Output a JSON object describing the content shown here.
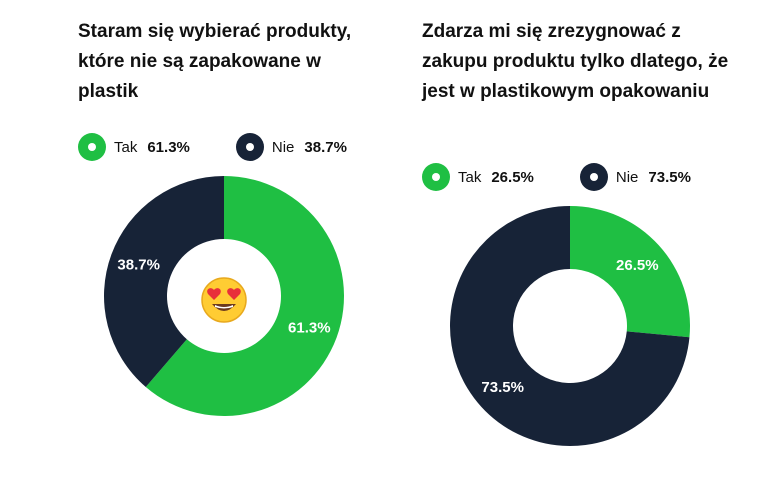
{
  "colors": {
    "tak": "#1fbf43",
    "nie": "#172337"
  },
  "chart_data": [
    {
      "type": "pie",
      "title": "Staram się wybierać produkty, które nie są zapakowane w plastik",
      "categories": [
        "Tak",
        "Nie"
      ],
      "values": [
        61.3,
        38.7
      ],
      "value_labels": [
        "61.3%",
        "38.7%"
      ],
      "donut": true,
      "legend": "top",
      "center_icon": "heart-eyes-emoji-icon"
    },
    {
      "type": "pie",
      "title": "Zdarza mi się zrezygnować z zakupu produktu tylko dlatego, że jest w plastikowym opakowaniu",
      "categories": [
        "Tak",
        "Nie"
      ],
      "values": [
        26.5,
        73.5
      ],
      "value_labels": [
        "26.5%",
        "73.5%"
      ],
      "donut": true,
      "legend": "top"
    }
  ]
}
